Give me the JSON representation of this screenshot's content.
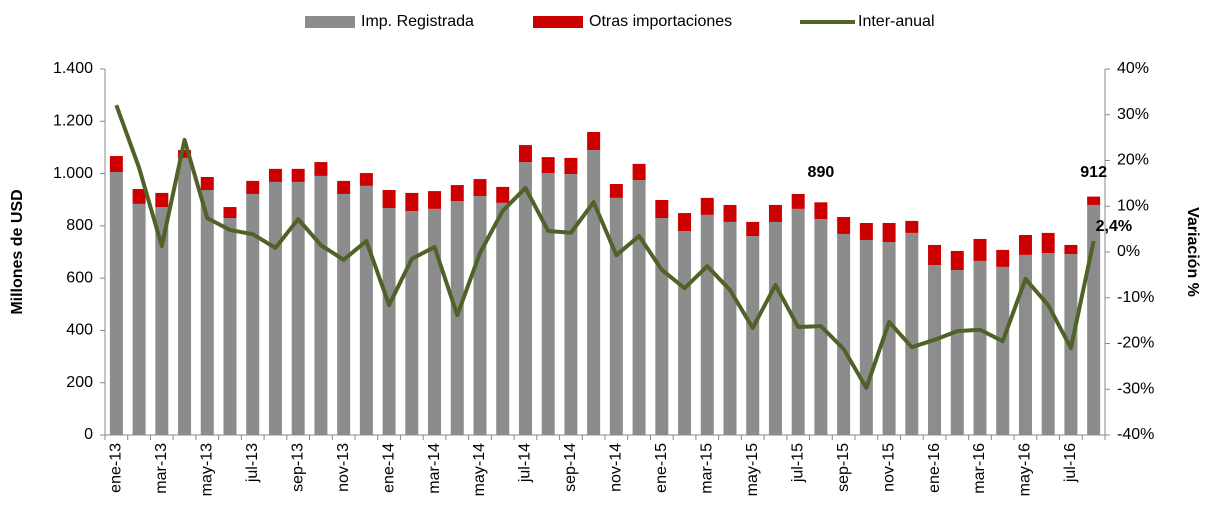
{
  "chart_data": {
    "type": "bar-line",
    "categories": [
      "ene-13",
      null,
      "mar-13",
      null,
      "may-13",
      null,
      "jul-13",
      null,
      "sep-13",
      null,
      "nov-13",
      null,
      "ene-14",
      null,
      "mar-14",
      null,
      "may-14",
      null,
      "jul-14",
      null,
      "sep-14",
      null,
      "nov-14",
      null,
      "ene-15",
      null,
      "mar-15",
      null,
      "may-15",
      null,
      "jul-15",
      null,
      "sep-15",
      null,
      "nov-15",
      null,
      "ene-16",
      null,
      "mar-16",
      null,
      "may-16",
      null,
      "jul-16",
      null
    ],
    "series": [
      {
        "name": "Imp. Registrada",
        "color": "#8c8c8c",
        "stack": true,
        "values": [
          1006,
          884,
          872,
          1060,
          937,
          830,
          922,
          968,
          968,
          991,
          922,
          953,
          868,
          857,
          865,
          895,
          914,
          888,
          1044,
          1002,
          998,
          1090,
          907,
          975,
          830,
          780,
          842,
          815,
          761,
          815,
          865,
          826,
          769,
          746,
          738,
          773,
          650,
          631,
          666,
          643,
          689,
          696,
          692,
          880
        ]
      },
      {
        "name": "Otras importaciones",
        "color": "#cc0000",
        "stack": true,
        "values": [
          61,
          57,
          54,
          30,
          50,
          42,
          50,
          50,
          50,
          53,
          50,
          49,
          69,
          69,
          68,
          61,
          65,
          61,
          65,
          61,
          62,
          69,
          53,
          62,
          69,
          69,
          65,
          65,
          54,
          65,
          57,
          64,
          65,
          65,
          73,
          46,
          77,
          73,
          84,
          65,
          76,
          77,
          35,
          32
        ]
      },
      {
        "name": "Inter-anual",
        "color": "#4f6228",
        "axis": "y2",
        "line": true,
        "values": [
          32.1,
          18.4,
          1.3,
          24.5,
          7.4,
          4.8,
          3.9,
          0.9,
          7.2,
          1.5,
          -1.7,
          2.4,
          -11.6,
          -1.5,
          1.1,
          -13.8,
          -0.2,
          9.0,
          14.0,
          4.6,
          4.2,
          10.9,
          -0.7,
          3.5,
          -3.9,
          -7.9,
          -3.1,
          -8.3,
          -16.6,
          -7.2,
          -16.4,
          -16.2,
          -21.2,
          -29.7,
          -15.3,
          -20.8,
          -19.2,
          -17.3,
          -17.0,
          -19.5,
          -5.9,
          -11.6,
          -21.0,
          2.4
        ],
        "value_labels": [
          null,
          null,
          null,
          null,
          null,
          null,
          null,
          null,
          null,
          null,
          null,
          null,
          null,
          null,
          null,
          null,
          null,
          null,
          null,
          null,
          null,
          null,
          null,
          null,
          null,
          null,
          null,
          null,
          null,
          null,
          null,
          null,
          null,
          null,
          null,
          null,
          null,
          null,
          null,
          null,
          null,
          null,
          null,
          "2,4%"
        ]
      }
    ],
    "annotations": [
      {
        "text": "890",
        "index": 31
      },
      {
        "text": "912",
        "index": 43
      }
    ],
    "ylabel": "Millones de USD",
    "y2label": "Variación %",
    "ylim": [
      0,
      1400
    ],
    "yticks": [
      0,
      200,
      400,
      600,
      800,
      {
        "value": 1000,
        "label": "1.000"
      },
      {
        "value": 1200,
        "label": "1.200"
      },
      {
        "value": 1400,
        "label": "1.400"
      }
    ],
    "y2lim": [
      -40,
      40
    ],
    "y2ticks": [
      {
        "value": -40,
        "label": "-40%"
      },
      {
        "value": -30,
        "label": "-30%"
      },
      {
        "value": -20,
        "label": "-20%"
      },
      {
        "value": -10,
        "label": "-10%"
      },
      {
        "value": 0,
        "label": "0%"
      },
      {
        "value": 10,
        "label": "10%"
      },
      {
        "value": 20,
        "label": "20%"
      },
      {
        "value": 30,
        "label": "30%"
      },
      {
        "value": 40,
        "label": "40%"
      }
    ],
    "legend": "top"
  }
}
